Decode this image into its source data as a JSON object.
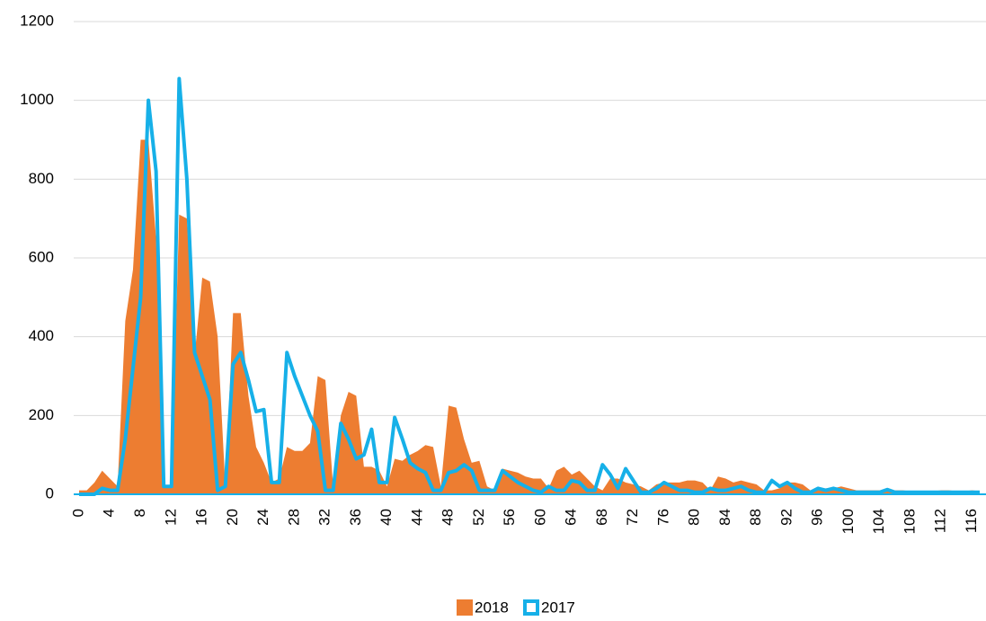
{
  "chart_data": {
    "type": "line",
    "x": [
      0,
      1,
      2,
      3,
      4,
      5,
      6,
      7,
      8,
      9,
      10,
      11,
      12,
      13,
      14,
      15,
      16,
      17,
      18,
      19,
      20,
      21,
      22,
      23,
      24,
      25,
      26,
      27,
      28,
      29,
      30,
      31,
      32,
      33,
      34,
      35,
      36,
      37,
      38,
      39,
      40,
      41,
      42,
      43,
      44,
      45,
      46,
      47,
      48,
      49,
      50,
      51,
      52,
      53,
      54,
      55,
      56,
      57,
      58,
      59,
      60,
      61,
      62,
      63,
      64,
      65,
      66,
      67,
      68,
      69,
      70,
      71,
      72,
      73,
      74,
      75,
      76,
      77,
      78,
      79,
      80,
      81,
      82,
      83,
      84,
      85,
      86,
      87,
      88,
      89,
      90,
      91,
      92,
      93,
      94,
      95,
      96,
      97,
      98,
      99,
      100,
      101,
      102,
      103,
      104,
      105,
      106,
      107,
      108,
      109,
      110,
      111,
      112,
      113,
      114,
      115,
      116,
      117
    ],
    "series": [
      {
        "name": "2018",
        "color": "#ed7d31",
        "style": "area",
        "values": [
          10,
          10,
          30,
          60,
          40,
          20,
          440,
          570,
          900,
          900,
          650,
          20,
          20,
          710,
          700,
          350,
          550,
          540,
          400,
          20,
          460,
          460,
          250,
          120,
          80,
          30,
          40,
          120,
          110,
          110,
          130,
          300,
          290,
          20,
          200,
          260,
          250,
          70,
          70,
          60,
          20,
          90,
          85,
          100,
          110,
          125,
          120,
          20,
          225,
          220,
          140,
          80,
          85,
          20,
          10,
          65,
          60,
          55,
          45,
          40,
          40,
          15,
          60,
          70,
          50,
          60,
          40,
          20,
          10,
          40,
          40,
          30,
          25,
          20,
          10,
          25,
          30,
          30,
          30,
          35,
          35,
          30,
          10,
          45,
          40,
          30,
          35,
          30,
          25,
          10,
          10,
          15,
          30,
          30,
          25,
          10,
          10,
          15,
          15,
          20,
          15,
          10,
          10,
          10,
          10,
          10,
          10,
          10,
          8,
          8,
          8,
          8,
          10,
          10,
          8,
          8,
          10,
          8
        ]
      },
      {
        "name": "2017",
        "color": "#16b0e8",
        "style": "line",
        "values": [
          0,
          0,
          0,
          15,
          10,
          10,
          140,
          320,
          500,
          1000,
          820,
          20,
          20,
          1055,
          800,
          360,
          300,
          240,
          10,
          20,
          330,
          360,
          290,
          210,
          215,
          30,
          30,
          360,
          300,
          250,
          200,
          160,
          10,
          10,
          180,
          140,
          90,
          100,
          165,
          30,
          30,
          195,
          140,
          80,
          65,
          55,
          10,
          10,
          55,
          60,
          75,
          60,
          10,
          10,
          10,
          60,
          45,
          30,
          20,
          10,
          5,
          20,
          10,
          10,
          35,
          30,
          10,
          10,
          75,
          50,
          15,
          65,
          35,
          5,
          5,
          15,
          30,
          20,
          10,
          10,
          5,
          5,
          15,
          10,
          10,
          15,
          20,
          10,
          5,
          5,
          35,
          20,
          30,
          15,
          5,
          5,
          15,
          10,
          15,
          10,
          5,
          5,
          5,
          5,
          5,
          12,
          5,
          5,
          5,
          5,
          5,
          5,
          5,
          5,
          5,
          5,
          5,
          5
        ]
      }
    ],
    "xlim": [
      0,
      117
    ],
    "xticks": [
      0,
      4,
      8,
      12,
      16,
      20,
      24,
      28,
      32,
      36,
      40,
      44,
      48,
      52,
      56,
      60,
      64,
      68,
      72,
      76,
      80,
      84,
      88,
      92,
      96,
      100,
      104,
      108,
      112,
      116
    ],
    "ylim": [
      0,
      1200
    ],
    "yticks": [
      0,
      200,
      400,
      600,
      800,
      1000,
      1200
    ],
    "grid": true
  }
}
